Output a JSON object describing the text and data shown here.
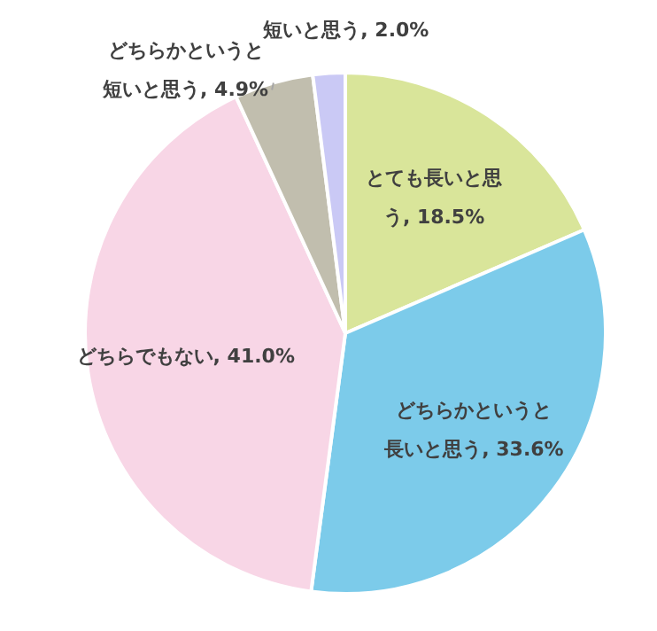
{
  "chart_data": {
    "type": "pie",
    "categories": [
      "とても長いと思う",
      "どちらかというと長いと思う",
      "どちらでもない",
      "どちらかというと短いと思う",
      "短いと思う"
    ],
    "values": [
      18.5,
      33.6,
      41.0,
      4.9,
      2.0
    ],
    "value_labels": [
      "18.5%",
      "33.6%",
      "41.0%",
      "4.9%",
      "2.0%"
    ],
    "colors": [
      "#d9e59a",
      "#7ccbea",
      "#f8d6e6",
      "#c1beae",
      "#cac9f5"
    ]
  }
}
